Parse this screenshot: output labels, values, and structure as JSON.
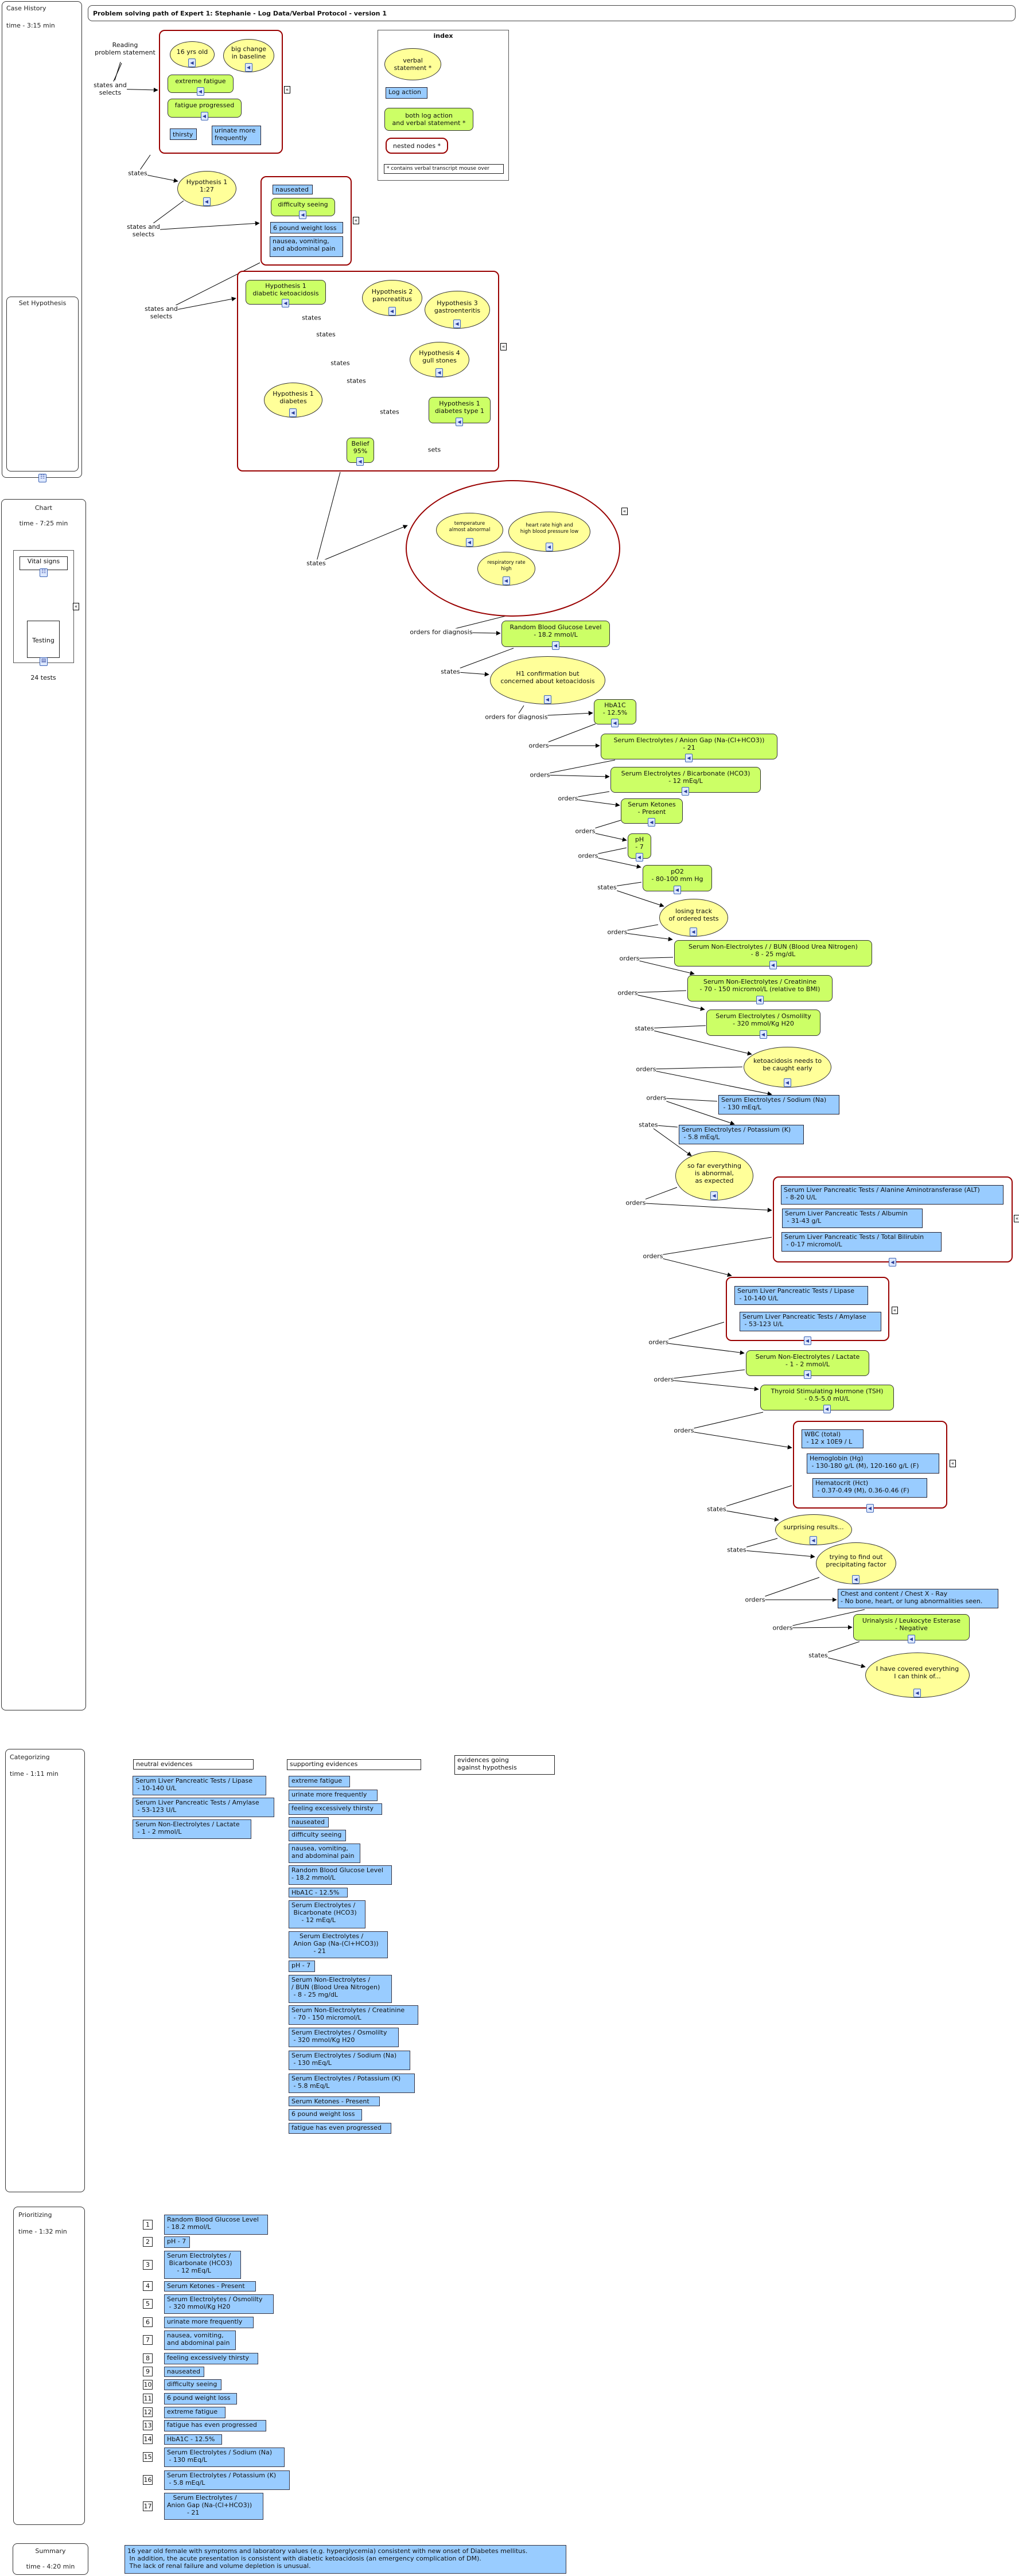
{
  "header": {
    "title": "Problem solving path of Expert 1: Stephanie -  Log Data/Verbal Protocol - version 1"
  },
  "panels": {
    "case_history": {
      "title": "Case History",
      "time": "time  - 3:15 min"
    },
    "set_hypothesis": {
      "title": "Set Hypothesis"
    },
    "chart": {
      "title": "Chart",
      "time": "time - 7:25 min",
      "vital_signs": "Vital signs",
      "testing": "Testing",
      "tests_count": "24 tests"
    },
    "categorizing": {
      "title": "Categorizing",
      "time": "time - 1:11 min"
    },
    "prioritizing": {
      "title": "Prioritizing",
      "time": "time - 1:32 min"
    },
    "summary": {
      "title": "Summary",
      "time": "time - 4:20 min"
    }
  },
  "index": {
    "title": "index",
    "verbal": "verbal\nstatement *",
    "log": "Log action",
    "both": "both log action\nand verbal statement *",
    "nested": "nested nodes *",
    "note": "* contains verbal transcript mouse over"
  },
  "colors": {
    "verbal": "#ffff99",
    "log": "#99ccff",
    "both": "#ccff66",
    "nested": "#990000"
  },
  "flow": {
    "reading": "Reading\nproblem statement",
    "nodes": {
      "yrs": {
        "text": "16 yrs old",
        "kind": "verbal"
      },
      "big": {
        "text": "big change\nin baseline",
        "kind": "verbal"
      },
      "ext": {
        "text": "extreme fatigue",
        "kind": "both"
      },
      "fprog": {
        "text": "fatigue progressed",
        "kind": "both"
      },
      "thirsty": {
        "text": "thirsty",
        "kind": "log"
      },
      "urin": {
        "text": "urinate more\nfrequently",
        "kind": "log"
      },
      "hyp1": {
        "text": "Hypothesis 1\n1:27",
        "kind": "verbal"
      },
      "nause": {
        "text": "nauseated",
        "kind": "log"
      },
      "diff": {
        "text": "difficulty seeing",
        "kind": "both"
      },
      "lb6": {
        "text": "6 pound weight loss",
        "kind": "log"
      },
      "nvab": {
        "text": "nausea, vomiting,\nand abdominal pain",
        "kind": "log"
      },
      "dka": {
        "text": "Hypothesis 1\ndiabetic ketoacidosis",
        "kind": "both"
      },
      "h2": {
        "text": "Hypothesis 2\npancreatitus",
        "kind": "verbal"
      },
      "h3": {
        "text": "Hypothesis 3\ngastroenteritis",
        "kind": "verbal"
      },
      "h4": {
        "text": "Hypothesis 4\ngull stones",
        "kind": "verbal"
      },
      "diab": {
        "text": "Hypothesis 1\ndiabetes",
        "kind": "verbal"
      },
      "dt1": {
        "text": "Hypothesis 1\ndiabetes type 1",
        "kind": "both"
      },
      "belief": {
        "text": "Belief\n95%",
        "kind": "both"
      },
      "temp": {
        "text": "temperature\nalmost abnormal",
        "kind": "verbal"
      },
      "hr": {
        "text": "heart rate high and\nhigh blood pressure low",
        "kind": "verbal"
      },
      "resp": {
        "text": "respiratory rate\nhigh",
        "kind": "verbal"
      },
      "rbg": {
        "text": "Random Blood Glucose Level\n- 18.2 mmol/L",
        "kind": "both"
      },
      "h1c": {
        "text": "H1 confirmation but\nconcerned about ketoacidosis",
        "kind": "verbal"
      },
      "hba": {
        "text": "HbA1C\n- 12.5%",
        "kind": "both"
      },
      "anion": {
        "text": "Serum Electrolytes / Anion Gap (Na-(Cl+HCO3))\n- 21",
        "kind": "both"
      },
      "bicarb": {
        "text": "Serum Electrolytes / Bicarbonate (HCO3)\n- 12 mEq/L",
        "kind": "both"
      },
      "ket": {
        "text": "Serum Ketones\n- Present",
        "kind": "both"
      },
      "ph": {
        "text": "pH\n- 7",
        "kind": "both"
      },
      "po2": {
        "text": "pO2\n- 80-100 mm Hg",
        "kind": "both"
      },
      "lose": {
        "text": "losing track\nof ordered tests",
        "kind": "verbal"
      },
      "bun": {
        "text": "Serum Non-Electrolytes / / BUN (Blood Urea Nitrogen)\n- 8 - 25 mg/dL",
        "kind": "both"
      },
      "creat": {
        "text": "Serum Non-Electrolytes / Creatinine\n- 70 - 150 micromol/L (relative to BMI)",
        "kind": "both"
      },
      "osmo": {
        "text": "Serum Electrolytes / Osmolilty\n- 320 mmol/Kg H20",
        "kind": "both"
      },
      "ketoearly": {
        "text": "ketoacidosis needs to\nbe caught early",
        "kind": "verbal"
      },
      "na": {
        "text": "Serum Electrolytes / Sodium (Na)\n - 130 mEq/L",
        "kind": "log"
      },
      "k": {
        "text": "Serum Electrolytes / Potassium (K)\n - 5.8 mEq/L",
        "kind": "log"
      },
      "sofar": {
        "text": "so far everything\nis abnormal,\nas expected",
        "kind": "verbal"
      },
      "alt": {
        "text": "Serum Liver Pancreatic Tests / Alanine Aminotransferase (ALT)\n - 8-20 U/L",
        "kind": "log"
      },
      "alb": {
        "text": "Serum Liver Pancreatic Tests / Albumin\n - 31-43 g/L",
        "kind": "log"
      },
      "bili": {
        "text": "Serum Liver Pancreatic Tests / Total Bilirubin\n - 0-17 micromol/L",
        "kind": "log"
      },
      "lip": {
        "text": "Serum Liver Pancreatic Tests / Lipase\n - 10-140 U/L",
        "kind": "log"
      },
      "amy": {
        "text": "Serum Liver Pancreatic Tests / Amylase\n - 53-123 U/L",
        "kind": "log"
      },
      "lac": {
        "text": "Serum Non-Electrolytes / Lactate\n- 1 - 2 mmol/L",
        "kind": "both"
      },
      "tsh": {
        "text": "Thyroid Stimulating Hormone (TSH)\n- 0.5-5.0 mU/L",
        "kind": "both"
      },
      "wbc": {
        "text": "WBC (total)\n - 12 x 10E9 / L",
        "kind": "log"
      },
      "hgb": {
        "text": "Hemoglobin (Hg)\n - 130-180 g/L (M), 120-160 g/L (F)",
        "kind": "log"
      },
      "hct": {
        "text": "Hematocrit (Hct)\n - 0.37-0.49 (M), 0.36-0.46 (F)",
        "kind": "log"
      },
      "surp": {
        "text": "surprising results...",
        "kind": "verbal"
      },
      "trying": {
        "text": "trying to find out\nprecipitating factor",
        "kind": "verbal"
      },
      "chest": {
        "text": "Chest and content / Chest X - Ray\n- No bone, heart, or lung abnormalities seen.",
        "kind": "log"
      },
      "urine": {
        "text": "Urinalysis / Leukocyte Esterase\n- Negative",
        "kind": "both"
      },
      "covered": {
        "text": "I have covered everything\nI can think of...",
        "kind": "verbal"
      }
    },
    "links": [
      "states and\nselects",
      "states",
      "states and\nselects",
      "states and\nselects",
      "states",
      "states",
      "states",
      "states",
      "states",
      "sets",
      "states",
      "orders for diagnosis",
      "states",
      "orders for diagnosis",
      "orders",
      "orders",
      "orders",
      "orders",
      "orders",
      "states",
      "orders",
      "orders",
      "orders",
      "states",
      "orders",
      "orders",
      "states",
      "orders",
      "orders",
      "orders",
      "orders",
      "orders",
      "states",
      "states",
      "orders",
      "orders",
      "states"
    ]
  },
  "categorizing": {
    "headers": {
      "neutral": "neutral evidences",
      "supporting": "supporting evidences",
      "against": "evidences going\nagainst hypothesis"
    },
    "neutral": [
      "Serum Liver Pancreatic Tests / Lipase\n - 10-140 U/L",
      "Serum Liver Pancreatic Tests / Amylase\n - 53-123 U/L",
      "Serum Non-Electrolytes / Lactate\n - 1 - 2 mmol/L"
    ],
    "supporting": [
      "extreme fatigue",
      "urinate more frequently",
      "feeling excessively thirsty",
      "nauseated",
      "difficulty seeing",
      "nausea, vomiting,\nand abdominal pain",
      "Random Blood Glucose Level\n- 18.2 mmol/L",
      "HbA1C - 12.5%",
      "Serum Electrolytes /\n Bicarbonate (HCO3)\n     - 12 mEq/L",
      "    Serum Electrolytes /\n Anion Gap (Na-(Cl+HCO3))\n           - 21",
      "pH - 7",
      "Serum Non-Electrolytes /\n/ BUN (Blood Urea Nitrogen)\n - 8 - 25 mg/dL",
      "Serum Non-Electrolytes / Creatinine\n - 70 - 150 micromol/L",
      "Serum Electrolytes / Osmolilty\n - 320 mmol/Kg H20",
      "Serum Electrolytes / Sodium (Na)\n - 130 mEq/L",
      "Serum Electrolytes / Potassium (K)\n - 5.8 mEq/L",
      "Serum Ketones - Present",
      "6 pound weight loss",
      "fatigue has even progressed"
    ]
  },
  "prioritizing": {
    "items": [
      {
        "rank": "1",
        "text": "Random Blood Glucose Level\n- 18.2 mmol/L"
      },
      {
        "rank": "2",
        "text": "pH - 7"
      },
      {
        "rank": "3",
        "text": "Serum Electrolytes /\n Bicarbonate (HCO3)\n     - 12 mEq/L"
      },
      {
        "rank": "4",
        "text": "Serum Ketones - Present"
      },
      {
        "rank": "5",
        "text": "Serum Electrolytes / Osmolilty\n - 320 mmol/Kg H20"
      },
      {
        "rank": "6",
        "text": "urinate more frequently"
      },
      {
        "rank": "7",
        "text": "nausea, vomiting,\nand abdominal pain"
      },
      {
        "rank": "8",
        "text": "feeling excessively thirsty"
      },
      {
        "rank": "9",
        "text": "nauseated"
      },
      {
        "rank": "10",
        "text": "difficulty seeing"
      },
      {
        "rank": "11",
        "text": "6 pound weight loss"
      },
      {
        "rank": "12",
        "text": "extreme fatigue"
      },
      {
        "rank": "13",
        "text": "fatigue has even progressed"
      },
      {
        "rank": "14",
        "text": "HbA1C - 12.5%"
      },
      {
        "rank": "15",
        "text": "Serum Electrolytes / Sodium (Na)\n - 130 mEq/L"
      },
      {
        "rank": "16",
        "text": "Serum Electrolytes / Potassium (K)\n - 5.8 mEq/L"
      },
      {
        "rank": "17",
        "text": "   Serum Electrolytes /\nAnion Gap (Na-(Cl+HCO3))\n          - 21"
      }
    ]
  },
  "summary": {
    "text": "16 year old female with symptoms and laboratory values (e.g. hyperglycemia) consistent with new onset of Diabetes mellitus.\n In addition, the acute presentation is consistent with diabetic ketoacidosis (an emergency complication of DM).\n The lack of renal failure and volume depletion is unusual."
  }
}
